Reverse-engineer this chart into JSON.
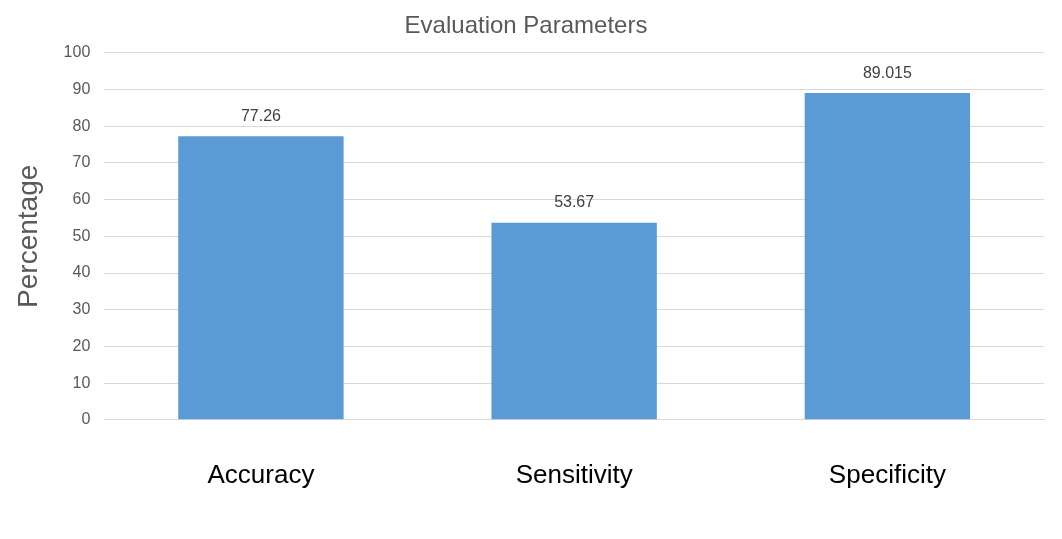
{
  "chart_data": {
    "type": "bar",
    "title": "Evaluation Parameters",
    "ylabel": "Percentage",
    "categories": [
      "Accuracy",
      "Sensitivity",
      "Specificity"
    ],
    "values": [
      77.26,
      53.67,
      89.015
    ],
    "color": "#5b9bd5",
    "ylim": [
      0,
      100
    ],
    "yticks": [
      0,
      10,
      20,
      30,
      40,
      50,
      60,
      70,
      80,
      90,
      100
    ],
    "grid": "y",
    "data_labels": true
  }
}
